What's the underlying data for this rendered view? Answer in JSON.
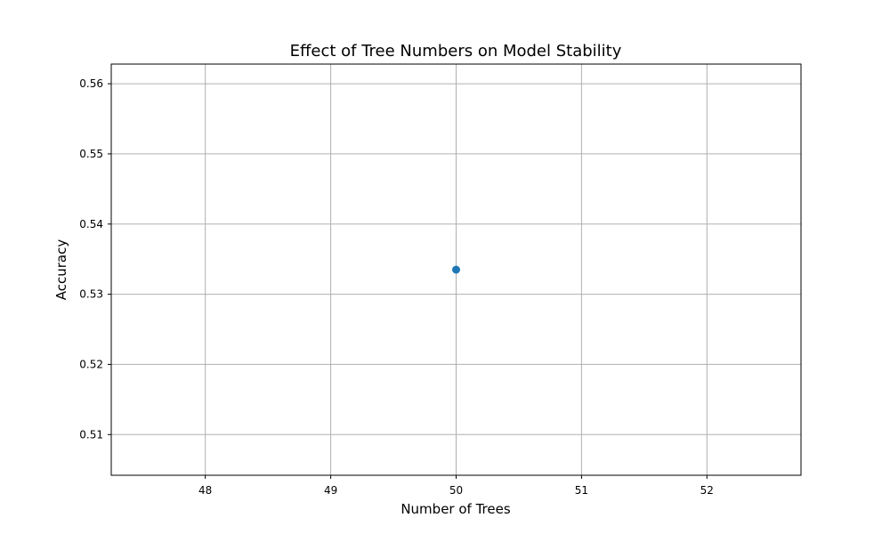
{
  "chart_data": {
    "type": "scatter",
    "title": "Effect of Tree Numbers on Model Stability",
    "xlabel": "Number of Trees",
    "ylabel": "Accuracy",
    "xlim": [
      47.25,
      52.75
    ],
    "ylim": [
      0.5042,
      0.5628
    ],
    "x_ticks": [
      48,
      49,
      50,
      51,
      52
    ],
    "y_ticks": [
      0.51,
      0.52,
      0.53,
      0.54,
      0.55,
      0.56
    ],
    "x_tick_labels": [
      "48",
      "49",
      "50",
      "51",
      "52"
    ],
    "y_tick_labels": [
      "0.51",
      "0.52",
      "0.53",
      "0.54",
      "0.55",
      "0.56"
    ],
    "grid": true,
    "legend": null,
    "series": [
      {
        "color": "#1f77b4",
        "marker": "circle",
        "points": [
          {
            "x": 50,
            "y": 0.5335
          }
        ]
      }
    ],
    "colors": {
      "grid": "#b0b0b0",
      "axes": "#000000",
      "point": "#1f77b4"
    }
  }
}
